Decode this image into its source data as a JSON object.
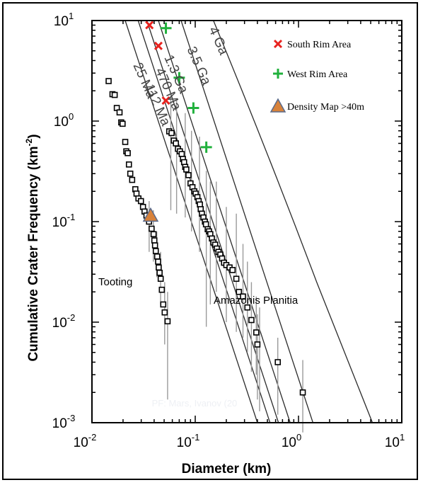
{
  "chart_data": {
    "type": "scatter",
    "xlabel": "Diameter (km)",
    "ylabel": "Cumulative Crater Frequency (km⁻²)",
    "ylabel_main": "Cumulative Crater Frequency (km",
    "ylabel_sup": "-2",
    "ylabel_close": ")",
    "x_scale": "log",
    "y_scale": "log",
    "xlim": [
      0.01,
      10
    ],
    "ylim": [
      0.001,
      10
    ],
    "x_ticks": [
      {
        "value": 0.01,
        "base": "10",
        "exp": "-2"
      },
      {
        "value": 0.1,
        "base": "10",
        "exp": "-1"
      },
      {
        "value": 1,
        "base": "10",
        "exp": "0"
      },
      {
        "value": 10,
        "base": "10",
        "exp": "1"
      }
    ],
    "y_ticks": [
      {
        "value": 0.001,
        "base": "10",
        "exp": "-3"
      },
      {
        "value": 0.01,
        "base": "10",
        "exp": "-2"
      },
      {
        "value": 0.1,
        "base": "10",
        "exp": "-1"
      },
      {
        "value": 1,
        "base": "10",
        "exp": "0"
      },
      {
        "value": 10,
        "base": "10",
        "exp": "1"
      }
    ],
    "isochrons": [
      {
        "label": "25 Ma",
        "points": [
          [
            0.021,
            10
          ],
          [
            0.4,
            0.001
          ]
        ]
      },
      {
        "label": "112 Ma",
        "points": [
          [
            0.028,
            10
          ],
          [
            0.53,
            0.001
          ]
        ]
      },
      {
        "label": "470 Ma",
        "points": [
          [
            0.034,
            10
          ],
          [
            0.64,
            0.001
          ]
        ]
      },
      {
        "label": "1.3 Ga",
        "points": [
          [
            0.044,
            10
          ],
          [
            0.83,
            0.001
          ]
        ]
      },
      {
        "label": "3.5 Ga",
        "points": [
          [
            0.073,
            10
          ],
          [
            1.38,
            0.001
          ]
        ]
      },
      {
        "label": "4 Ga",
        "points": [
          [
            0.15,
            10
          ],
          [
            0.5,
            0.5
          ],
          [
            1.5,
            0.025
          ],
          [
            5.2,
            0.001
          ]
        ]
      }
    ],
    "isochron_label_text": {
      "25 Ma": "25 Ma",
      "112 Ma": "112 Ma",
      "470 Ma": "470 Ma",
      "1.3 Ga": "1.3 Ga",
      "3.5 Ga": "3.5 Ga",
      "4 Ga": "4 Ga"
    },
    "tooting": {
      "label": "Tooting",
      "points": [
        [
          0.0145,
          2.5
        ],
        [
          0.0158,
          1.85
        ],
        [
          0.0166,
          1.82
        ],
        [
          0.0174,
          1.35
        ],
        [
          0.0185,
          1.22
        ],
        [
          0.0192,
          0.97
        ],
        [
          0.0198,
          0.94
        ],
        [
          0.021,
          0.62
        ],
        [
          0.0215,
          0.5
        ],
        [
          0.0222,
          0.48
        ],
        [
          0.0228,
          0.37
        ],
        [
          0.0235,
          0.3
        ],
        [
          0.0245,
          0.26
        ],
        [
          0.0263,
          0.21
        ],
        [
          0.027,
          0.19
        ],
        [
          0.0282,
          0.17
        ],
        [
          0.0298,
          0.16
        ],
        [
          0.0312,
          0.14
        ],
        [
          0.0323,
          0.126
        ],
        [
          0.0337,
          0.115
        ],
        [
          0.0357,
          0.1
        ],
        [
          0.0378,
          0.085
        ],
        [
          0.0395,
          0.075
        ],
        [
          0.0402,
          0.065
        ],
        [
          0.0408,
          0.058
        ],
        [
          0.0415,
          0.051
        ],
        [
          0.0428,
          0.045
        ],
        [
          0.0437,
          0.04
        ],
        [
          0.0443,
          0.035
        ],
        [
          0.0452,
          0.031
        ],
        [
          0.0463,
          0.027
        ],
        [
          0.0475,
          0.021
        ],
        [
          0.049,
          0.015
        ],
        [
          0.0506,
          0.0125
        ],
        [
          0.054,
          0.0102
        ]
      ],
      "error_bars": [
        [
          0.0358,
          0.05,
          0.16
        ],
        [
          0.0393,
          0.04,
          0.13
        ],
        [
          0.0424,
          0.028,
          0.08
        ],
        [
          0.0462,
          0.015,
          0.05
        ],
        [
          0.0506,
          0.006,
          0.025
        ],
        [
          0.054,
          0.0017,
          0.02
        ]
      ]
    },
    "amazonis": {
      "label": "Amazonis Planitia",
      "points": [
        [
          0.056,
          0.79
        ],
        [
          0.059,
          0.76
        ],
        [
          0.062,
          0.64
        ],
        [
          0.065,
          0.6
        ],
        [
          0.068,
          0.53
        ],
        [
          0.071,
          0.5
        ],
        [
          0.074,
          0.47
        ],
        [
          0.076,
          0.42
        ],
        [
          0.078,
          0.39
        ],
        [
          0.08,
          0.35
        ],
        [
          0.082,
          0.33
        ],
        [
          0.086,
          0.29
        ],
        [
          0.09,
          0.24
        ],
        [
          0.094,
          0.22
        ],
        [
          0.098,
          0.2
        ],
        [
          0.101,
          0.19
        ],
        [
          0.105,
          0.175
        ],
        [
          0.108,
          0.16
        ],
        [
          0.111,
          0.148
        ],
        [
          0.113,
          0.133
        ],
        [
          0.116,
          0.12
        ],
        [
          0.12,
          0.11
        ],
        [
          0.124,
          0.1
        ],
        [
          0.127,
          0.094
        ],
        [
          0.132,
          0.084
        ],
        [
          0.136,
          0.08
        ],
        [
          0.14,
          0.075
        ],
        [
          0.145,
          0.068
        ],
        [
          0.15,
          0.062
        ],
        [
          0.156,
          0.059
        ],
        [
          0.162,
          0.054
        ],
        [
          0.168,
          0.05
        ],
        [
          0.175,
          0.047
        ],
        [
          0.182,
          0.043
        ],
        [
          0.19,
          0.039
        ],
        [
          0.2,
          0.037
        ],
        [
          0.215,
          0.035
        ],
        [
          0.23,
          0.033
        ],
        [
          0.25,
          0.027
        ],
        [
          0.265,
          0.02
        ],
        [
          0.29,
          0.018
        ],
        [
          0.32,
          0.014
        ],
        [
          0.35,
          0.0105
        ],
        [
          0.39,
          0.0079
        ],
        [
          0.4,
          0.006
        ],
        [
          0.63,
          0.004
        ],
        [
          1.1,
          0.002
        ]
      ],
      "error_bars": [
        [
          0.058,
          0.13,
          1.9
        ],
        [
          0.066,
          0.12,
          1.6
        ],
        [
          0.08,
          0.11,
          1.2
        ],
        [
          0.092,
          0.08,
          0.8
        ],
        [
          0.11,
          0.05,
          0.7
        ],
        [
          0.128,
          0.009,
          0.32
        ],
        [
          0.14,
          0.015,
          0.25
        ],
        [
          0.16,
          0.02,
          0.25
        ],
        [
          0.2,
          0.01,
          0.14
        ],
        [
          0.25,
          0.008,
          0.12
        ],
        [
          0.29,
          0.007,
          0.06
        ],
        [
          0.32,
          0.005,
          0.04
        ],
        [
          0.35,
          0.0032,
          0.025
        ],
        [
          0.39,
          0.003,
          0.018
        ],
        [
          0.4,
          0.0017,
          0.012
        ],
        [
          0.42,
          0.0013,
          0.014
        ],
        [
          0.63,
          0.0012,
          0.007
        ],
        [
          1.1,
          0.0008,
          0.0042
        ]
      ]
    },
    "south_rim": {
      "label": "South Rim Area",
      "color": "#e8231f",
      "points": [
        [
          0.036,
          9.0
        ],
        [
          0.044,
          5.6
        ],
        [
          0.052,
          1.6
        ]
      ]
    },
    "west_rim": {
      "label": "West Rim Area",
      "color": "#20b13c",
      "points": [
        [
          0.052,
          8.4
        ],
        [
          0.07,
          2.7
        ],
        [
          0.096,
          1.35
        ],
        [
          0.128,
          0.55
        ]
      ]
    },
    "density_map": {
      "label": "Density Map >40m",
      "color": "#d8823a",
      "edge_color": "#5a6a8a",
      "points": [
        [
          0.037,
          0.115
        ]
      ]
    },
    "watermark": "PF: Mars, Ivanov (20",
    "watermark_color": "#eef0f4"
  }
}
